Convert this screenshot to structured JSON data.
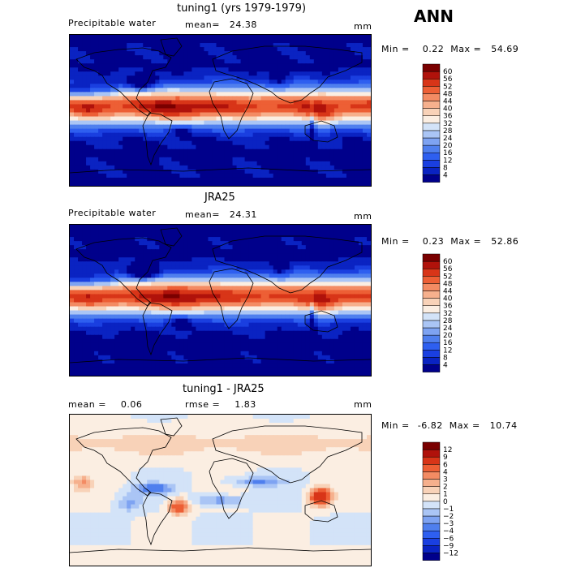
{
  "season": "ANN",
  "panels": [
    {
      "title": "tuning1 (yrs 1979-1979)",
      "left_label": "Precipitable water",
      "mean_label": "mean=",
      "mean_value": "24.38",
      "units": "mm",
      "min_label": "Min =",
      "min_value": "0.22",
      "max_label": "Max =",
      "max_value": "54.69",
      "kind": "abs"
    },
    {
      "title": "JRA25",
      "left_label": "Precipitable water",
      "mean_label": "mean=",
      "mean_value": "24.31",
      "units": "mm",
      "min_label": "Min =",
      "min_value": "0.23",
      "max_label": "Max =",
      "max_value": "52.86",
      "kind": "abs"
    },
    {
      "title": "tuning1 - JRA25",
      "left_label": "mean =",
      "left_value": "0.06",
      "rmse_label": "rmse =",
      "rmse_value": "1.83",
      "units": "mm",
      "min_label": "Min =",
      "min_value": "-6.82",
      "max_label": "Max =",
      "max_value": "10.74",
      "kind": "diff"
    }
  ],
  "chart_data": [
    {
      "type": "heatmap",
      "title": "tuning1 (yrs 1979-1979)",
      "variable": "Precipitable water",
      "units": "mm",
      "mean": 24.38,
      "min": 0.22,
      "max": 54.69,
      "colorbar_levels": [
        4,
        8,
        12,
        16,
        20,
        24,
        28,
        32,
        36,
        40,
        44,
        48,
        52,
        56,
        60
      ],
      "colors": [
        "#00008b",
        "#0a23c2",
        "#1a3fe0",
        "#2e5ff0",
        "#4f7fee",
        "#7ea3f2",
        "#aac5f5",
        "#d3e3f8",
        "#fbeee2",
        "#f8d2b8",
        "#f6b08d",
        "#f38b63",
        "#ed5f35",
        "#d83518",
        "#b0120b",
        "#7a0000"
      ]
    },
    {
      "type": "heatmap",
      "title": "JRA25",
      "variable": "Precipitable water",
      "units": "mm",
      "mean": 24.31,
      "min": 0.23,
      "max": 52.86,
      "colorbar_levels": [
        4,
        8,
        12,
        16,
        20,
        24,
        28,
        32,
        36,
        40,
        44,
        48,
        52,
        56,
        60
      ],
      "colors": [
        "#00008b",
        "#0a23c2",
        "#1a3fe0",
        "#2e5ff0",
        "#4f7fee",
        "#7ea3f2",
        "#aac5f5",
        "#d3e3f8",
        "#fbeee2",
        "#f8d2b8",
        "#f6b08d",
        "#f38b63",
        "#ed5f35",
        "#d83518",
        "#b0120b",
        "#7a0000"
      ]
    },
    {
      "type": "heatmap",
      "title": "tuning1 - JRA25",
      "units": "mm",
      "mean": 0.06,
      "rmse": 1.83,
      "min": -6.82,
      "max": 10.74,
      "colorbar_levels": [
        -12,
        -9,
        -6,
        -4,
        -3,
        -2,
        -1,
        0,
        1,
        2,
        3,
        4,
        6,
        9,
        12
      ],
      "colors": [
        "#00008b",
        "#0a23c2",
        "#1a3fe0",
        "#2e5ff0",
        "#4f7fee",
        "#7ea3f2",
        "#aac5f5",
        "#d3e3f8",
        "#fbeee2",
        "#f8d2b8",
        "#f6b08d",
        "#f38b63",
        "#ed5f35",
        "#d83518",
        "#b0120b",
        "#7a0000"
      ]
    }
  ]
}
